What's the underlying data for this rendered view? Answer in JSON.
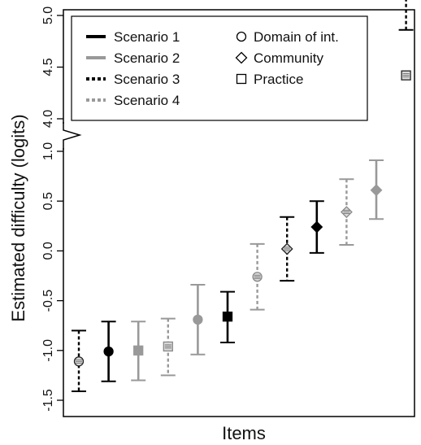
{
  "chart_data": {
    "type": "scatter",
    "title": "",
    "xlabel": "Items",
    "ylabel": "Estimated difficulty (logits)",
    "grid": false,
    "legend_placement": "top-left",
    "axis_break": {
      "lower_ylim": [
        -1.5,
        1.0
      ],
      "upper_ylim": [
        4.0,
        5.0
      ]
    },
    "lower_ticks": [
      "-1.5",
      "-1.0",
      "-0.5",
      "0.0",
      "0.5",
      "1.0"
    ],
    "upper_ticks": [
      "4.0",
      "4.5",
      "5.0"
    ],
    "lower_tick_values": [
      -1.5,
      -1.0,
      -0.5,
      0.0,
      0.5,
      1.0
    ],
    "upper_tick_values": [
      4.0,
      4.5,
      5.0
    ],
    "scenarios": [
      {
        "name": "Scenario 1",
        "color": "#000000",
        "dash": "solid"
      },
      {
        "name": "Scenario 2",
        "color": "#999999",
        "dash": "solid"
      },
      {
        "name": "Scenario 3",
        "color": "#000000",
        "dash": "dashed"
      },
      {
        "name": "Scenario 4",
        "color": "#999999",
        "dash": "dashed"
      }
    ],
    "item_types": [
      {
        "name": "Domain of int.",
        "marker": "circle"
      },
      {
        "name": "Community",
        "marker": "diamond"
      },
      {
        "name": "Practice",
        "marker": "square"
      }
    ],
    "points": [
      {
        "scenario": "Scenario 3",
        "type": "Domain of int.",
        "value": -1.11,
        "lower": -1.41,
        "upper": -0.8
      },
      {
        "scenario": "Scenario 1",
        "type": "Domain of int.",
        "value": -1.01,
        "lower": -1.31,
        "upper": -0.71
      },
      {
        "scenario": "Scenario 2",
        "type": "Practice",
        "value": -1.0,
        "lower": -1.3,
        "upper": -0.71
      },
      {
        "scenario": "Scenario 4",
        "type": "Practice",
        "value": -0.96,
        "lower": -1.25,
        "upper": -0.68
      },
      {
        "scenario": "Scenario 2",
        "type": "Domain of int.",
        "value": -0.69,
        "lower": -1.04,
        "upper": -0.34
      },
      {
        "scenario": "Scenario 1",
        "type": "Practice",
        "value": -0.66,
        "lower": -0.92,
        "upper": -0.41
      },
      {
        "scenario": "Scenario 4",
        "type": "Domain of int.",
        "value": -0.26,
        "lower": -0.59,
        "upper": 0.07
      },
      {
        "scenario": "Scenario 3",
        "type": "Community",
        "value": 0.02,
        "lower": -0.3,
        "upper": 0.34
      },
      {
        "scenario": "Scenario 1",
        "type": "Community",
        "value": 0.24,
        "lower": -0.02,
        "upper": 0.5
      },
      {
        "scenario": "Scenario 4",
        "type": "Community",
        "value": 0.39,
        "lower": 0.06,
        "upper": 0.72
      },
      {
        "scenario": "Scenario 2",
        "type": "Community",
        "value": 0.61,
        "lower": 0.32,
        "upper": 0.91
      },
      {
        "scenario": "Scenario 3",
        "type": "Practice",
        "value": 4.42,
        "lower": 3.99,
        "upper": 4.86
      }
    ]
  }
}
